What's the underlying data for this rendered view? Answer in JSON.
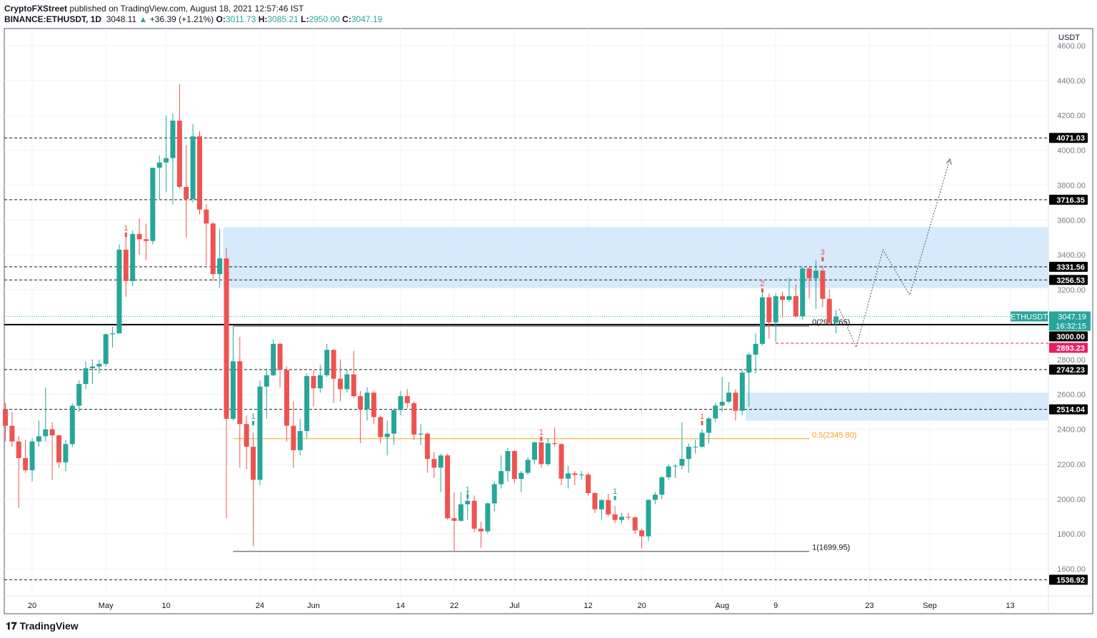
{
  "header": {
    "publisher": "CryptoFXStreet",
    "published_text": "published on TradingView.com, August 18, 2021 12:57:46 IST",
    "symbol": "BINANCE:ETHUSDT, 1D",
    "last": "3048.11",
    "change": "+36.39 (+1.21%)",
    "o_label": "O:",
    "o": "3011.73",
    "h_label": "H:",
    "h": "3085.21",
    "l_label": "L:",
    "l": "2950.00",
    "c_label": "C:",
    "c": "3047.19"
  },
  "colors": {
    "up": "#26a69a",
    "down": "#ef5350",
    "zone": "#cfe6fb",
    "fib_mid": "#f7a11a",
    "pink": "#e91e63"
  },
  "logo": "TradingView",
  "chart_data": {
    "type": "candlestick",
    "currency_label": "USDT",
    "start_date": "2021-04-16",
    "ylim": [
      1500,
      4700
    ],
    "y_ticks": [
      4600,
      4400,
      4200,
      4000,
      3800,
      3600,
      3400,
      3200,
      2800,
      2600,
      2400,
      2200,
      2000,
      1800,
      1600
    ],
    "x_ticks": [
      {
        "label": "20",
        "day": 4
      },
      {
        "label": "May",
        "day": 15
      },
      {
        "label": "10",
        "day": 24
      },
      {
        "label": "24",
        "day": 38
      },
      {
        "label": "Jun",
        "day": 46
      },
      {
        "label": "14",
        "day": 59
      },
      {
        "label": "22",
        "day": 67
      },
      {
        "label": "Jul",
        "day": 76
      },
      {
        "label": "12",
        "day": 87
      },
      {
        "label": "20",
        "day": 95
      },
      {
        "label": "Aug",
        "day": 107
      },
      {
        "label": "9",
        "day": 115
      },
      {
        "label": "23",
        "day": 129
      },
      {
        "label": "Sep",
        "day": 138
      },
      {
        "label": "13",
        "day": 150
      }
    ],
    "ohlc": [
      [
        2515,
        2550,
        2330,
        2420
      ],
      [
        2420,
        2500,
        2300,
        2330
      ],
      [
        2330,
        2360,
        1950,
        2235
      ],
      [
        2235,
        2340,
        2150,
        2165
      ],
      [
        2165,
        2350,
        2100,
        2330
      ],
      [
        2330,
        2450,
        2300,
        2360
      ],
      [
        2360,
        2640,
        2330,
        2400
      ],
      [
        2400,
        2440,
        2110,
        2365
      ],
      [
        2365,
        2370,
        2180,
        2210
      ],
      [
        2210,
        2340,
        2160,
        2315
      ],
      [
        2315,
        2550,
        2300,
        2535
      ],
      [
        2535,
        2680,
        2500,
        2660
      ],
      [
        2660,
        2790,
        2630,
        2750
      ],
      [
        2750,
        2800,
        2660,
        2760
      ],
      [
        2760,
        2800,
        2720,
        2775
      ],
      [
        2775,
        2950,
        2760,
        2945
      ],
      [
        2945,
        2990,
        2870,
        2950
      ],
      [
        2950,
        3460,
        2950,
        3430
      ],
      [
        3430,
        3530,
        3160,
        3250
      ],
      [
        3250,
        3540,
        3220,
        3520
      ],
      [
        3520,
        3610,
        3400,
        3490
      ],
      [
        3490,
        3580,
        3370,
        3480
      ],
      [
        3480,
        3900,
        3460,
        3900
      ],
      [
        3900,
        3970,
        3720,
        3930
      ],
      [
        3930,
        4200,
        3760,
        3955
      ],
      [
        3955,
        4210,
        3690,
        4170
      ],
      [
        4170,
        4380,
        3780,
        3790
      ],
      [
        3790,
        4030,
        3500,
        3720
      ],
      [
        3720,
        4150,
        3700,
        4080
      ],
      [
        4080,
        4110,
        3630,
        3660
      ],
      [
        3660,
        3690,
        3340,
        3580
      ],
      [
        3580,
        3590,
        3250,
        3290
      ],
      [
        3290,
        3550,
        3210,
        3380
      ],
      [
        3380,
        3440,
        1890,
        2460
      ],
      [
        2460,
        2990,
        2450,
        2790
      ],
      [
        2790,
        2930,
        2180,
        2430
      ],
      [
        2430,
        2480,
        2170,
        2300
      ],
      [
        2300,
        2380,
        1730,
        2110
      ],
      [
        2110,
        2680,
        2080,
        2645
      ],
      [
        2645,
        2750,
        2460,
        2710
      ],
      [
        2710,
        2915,
        2705,
        2890
      ],
      [
        2890,
        2895,
        2640,
        2740
      ],
      [
        2740,
        2760,
        2330,
        2420
      ],
      [
        2420,
        2560,
        2180,
        2280
      ],
      [
        2280,
        2460,
        2250,
        2390
      ],
      [
        2390,
        2720,
        2350,
        2705
      ],
      [
        2705,
        2740,
        2530,
        2635
      ],
      [
        2635,
        2770,
        2610,
        2710
      ],
      [
        2710,
        2890,
        2700,
        2855
      ],
      [
        2855,
        2860,
        2550,
        2690
      ],
      [
        2690,
        2800,
        2560,
        2630
      ],
      [
        2630,
        2740,
        2610,
        2715
      ],
      [
        2715,
        2850,
        2580,
        2590
      ],
      [
        2590,
        2620,
        2320,
        2515
      ],
      [
        2515,
        2640,
        2450,
        2610
      ],
      [
        2610,
        2620,
        2430,
        2470
      ],
      [
        2470,
        2480,
        2320,
        2355
      ],
      [
        2355,
        2450,
        2250,
        2375
      ],
      [
        2375,
        2520,
        2310,
        2510
      ],
      [
        2510,
        2620,
        2480,
        2590
      ],
      [
        2590,
        2630,
        2520,
        2550
      ],
      [
        2550,
        2560,
        2340,
        2370
      ],
      [
        2370,
        2430,
        2310,
        2375
      ],
      [
        2375,
        2380,
        2150,
        2230
      ],
      [
        2230,
        2270,
        2120,
        2180
      ],
      [
        2180,
        2260,
        2040,
        2250
      ],
      [
        2250,
        2260,
        1880,
        1890
      ],
      [
        1890,
        2040,
        1700,
        1875
      ],
      [
        1875,
        2040,
        1870,
        1970
      ],
      [
        1970,
        2050,
        1880,
        1990
      ],
      [
        1990,
        2020,
        1810,
        1830
      ],
      [
        1830,
        1870,
        1720,
        1815
      ],
      [
        1815,
        1980,
        1800,
        1975
      ],
      [
        1975,
        2100,
        1930,
        2085
      ],
      [
        2085,
        2250,
        2060,
        2160
      ],
      [
        2160,
        2290,
        2100,
        2275
      ],
      [
        2275,
        2280,
        2090,
        2115
      ],
      [
        2115,
        2160,
        2040,
        2150
      ],
      [
        2150,
        2240,
        2140,
        2225
      ],
      [
        2225,
        2330,
        2200,
        2325
      ],
      [
        2325,
        2330,
        2180,
        2200
      ],
      [
        2200,
        2350,
        2190,
        2320
      ],
      [
        2320,
        2410,
        2300,
        2315
      ],
      [
        2315,
        2320,
        2080,
        2117
      ],
      [
        2117,
        2190,
        2060,
        2147
      ],
      [
        2147,
        2160,
        2080,
        2138
      ],
      [
        2138,
        2160,
        2110,
        2140
      ],
      [
        2140,
        2150,
        2020,
        2034
      ],
      [
        2034,
        2040,
        1920,
        1941
      ],
      [
        1941,
        2000,
        1880,
        1994
      ],
      [
        1994,
        2030,
        1900,
        1912
      ],
      [
        1912,
        1960,
        1860,
        1880
      ],
      [
        1880,
        1920,
        1860,
        1898
      ],
      [
        1898,
        1920,
        1880,
        1895
      ],
      [
        1895,
        1900,
        1800,
        1820
      ],
      [
        1820,
        1830,
        1718,
        1786
      ],
      [
        1786,
        2000,
        1760,
        1995
      ],
      [
        1995,
        2040,
        1970,
        2025
      ],
      [
        2025,
        2130,
        2000,
        2125
      ],
      [
        2125,
        2200,
        2110,
        2187
      ],
      [
        2187,
        2200,
        2120,
        2191
      ],
      [
        2191,
        2440,
        2170,
        2230
      ],
      [
        2230,
        2320,
        2150,
        2300
      ],
      [
        2300,
        2340,
        2260,
        2300
      ],
      [
        2300,
        2400,
        2290,
        2380
      ],
      [
        2380,
        2470,
        2320,
        2462
      ],
      [
        2462,
        2550,
        2440,
        2536
      ],
      [
        2536,
        2700,
        2500,
        2558
      ],
      [
        2558,
        2670,
        2550,
        2610
      ],
      [
        2610,
        2630,
        2450,
        2506
      ],
      [
        2506,
        2740,
        2480,
        2725
      ],
      [
        2725,
        2840,
        2530,
        2828
      ],
      [
        2828,
        2950,
        2720,
        2890
      ],
      [
        2890,
        3180,
        2880,
        3157
      ],
      [
        3157,
        3180,
        2920,
        3013
      ],
      [
        3013,
        3180,
        2900,
        3163
      ],
      [
        3163,
        3190,
        3040,
        3142
      ],
      [
        3142,
        3270,
        3130,
        3164
      ],
      [
        3164,
        3230,
        3040,
        3048
      ],
      [
        3048,
        3330,
        3030,
        3322
      ],
      [
        3322,
        3330,
        3150,
        3265
      ],
      [
        3265,
        3370,
        3090,
        3310
      ],
      [
        3310,
        3340,
        3100,
        3148
      ],
      [
        3148,
        3200,
        2990,
        3011
      ],
      [
        3011,
        3085,
        2950,
        3047
      ]
    ],
    "levels": [
      {
        "price": 4071.03,
        "label": "4071.03"
      },
      {
        "price": 3716.35,
        "label": "3716.35"
      },
      {
        "price": 3331.56,
        "label": "3331.56"
      },
      {
        "price": 3256.53,
        "label": "3256.53"
      },
      {
        "price": 2742.23,
        "label": "2742.23"
      },
      {
        "price": 2514.04,
        "label": "2514.04"
      },
      {
        "price": 1536.92,
        "label": "1536.92"
      }
    ],
    "key_level": {
      "price": 3000,
      "label": "3000.00"
    },
    "pink_level": {
      "price": 2893.23,
      "label": "2893.23",
      "from_day": 115
    },
    "zones": [
      {
        "from": 3210,
        "to": 3560,
        "from_day": 32
      },
      {
        "from": 2450,
        "to": 2610,
        "from_day": 110
      }
    ],
    "fib": [
      {
        "price": 2991.65,
        "label": "0(2991.65)"
      },
      {
        "price": 2345.8,
        "label": "0.5(2345.80)"
      },
      {
        "price": 1699.95,
        "label": "1(1699.95)"
      }
    ],
    "fib_range_days": [
      34,
      120
    ],
    "last_price": {
      "symbol": "ETHUSDT",
      "price": 3047.19,
      "label": "3047.19",
      "countdown": "16:32:15"
    },
    "projection": [
      [
        124.5,
        3090
      ],
      [
        127,
        2870
      ],
      [
        131,
        3430
      ],
      [
        135,
        3170
      ],
      [
        141,
        3950
      ]
    ],
    "td_markers": [
      {
        "day": 18,
        "price": 3540,
        "label": "1",
        "color": "#ef5350"
      },
      {
        "day": 37,
        "price": 2460,
        "label": "1",
        "color": "#26a69a"
      },
      {
        "day": 69,
        "price": 2040,
        "label": "1",
        "color": "#26a69a"
      },
      {
        "day": 80,
        "price": 2370,
        "label": "1",
        "color": "#ef5350"
      },
      {
        "day": 91,
        "price": 2030,
        "label": "1",
        "color": "#26a69a"
      },
      {
        "day": 104,
        "price": 2460,
        "label": "1",
        "color": "#ef5350"
      },
      {
        "day": 113,
        "price": 3220,
        "label": "2",
        "color": "#ef5350"
      },
      {
        "day": 122,
        "price": 3400,
        "label": "3",
        "color": "#ef5350"
      }
    ]
  }
}
